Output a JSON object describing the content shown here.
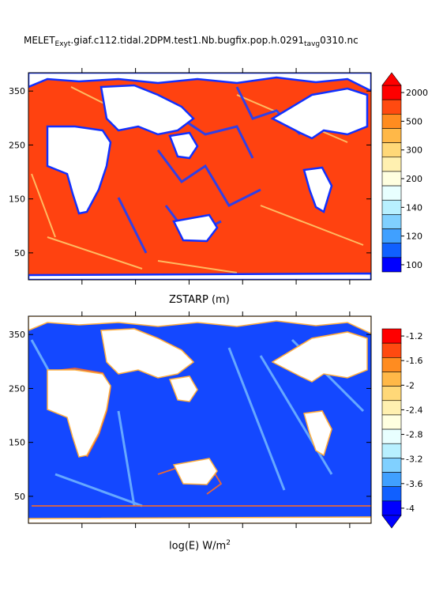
{
  "title": {
    "prefix": "MELET",
    "sub1": "Exyt",
    "middle": ".giaf.c112.tidal.2DPM.test1.Nb.bugfix.pop.h.0291",
    "sub2": "tavg",
    "middle2": "0",
    "suffix": "310.nc"
  },
  "chart_data": [
    {
      "type": "heatmap",
      "xlabel": "ZSTARP  (m)",
      "y_ticks": [
        "350",
        "250",
        "150",
        "50"
      ],
      "y_tick_values": [
        350,
        250,
        150,
        50
      ],
      "ylim": [
        0,
        384
      ],
      "colorbar": {
        "labels": [
          "2000",
          "500",
          "300",
          "200",
          "140",
          "120",
          "100"
        ],
        "colors": [
          "#ff0000",
          "#ff4a10",
          "#ff8c20",
          "#ffb848",
          "#ffd878",
          "#fff0b0",
          "#ffffe0",
          "#e8ffff",
          "#b8f0ff",
          "#80d0ff",
          "#40a0ff",
          "#1060ff",
          "#0000ff"
        ],
        "extend_top": true,
        "extend_bottom": false
      }
    },
    {
      "type": "heatmap",
      "xlabel": "log(E) W/m",
      "xlabel_sup": "2",
      "y_ticks": [
        "350",
        "250",
        "150",
        "50"
      ],
      "y_tick_values": [
        350,
        250,
        150,
        50
      ],
      "ylim": [
        0,
        384
      ],
      "colorbar": {
        "labels": [
          "-1.2",
          "-1.6",
          "-2",
          "-2.4",
          "-2.8",
          "-3.2",
          "-3.6",
          "-4"
        ],
        "colors": [
          "#ff0000",
          "#ff4a10",
          "#ff8c20",
          "#ffb848",
          "#ffd878",
          "#fff0b0",
          "#ffffe0",
          "#e8ffff",
          "#b8f0ff",
          "#80d0ff",
          "#40a0ff",
          "#1060ff",
          "#0000ff"
        ],
        "extend_top": false,
        "extend_bottom": true
      }
    }
  ]
}
